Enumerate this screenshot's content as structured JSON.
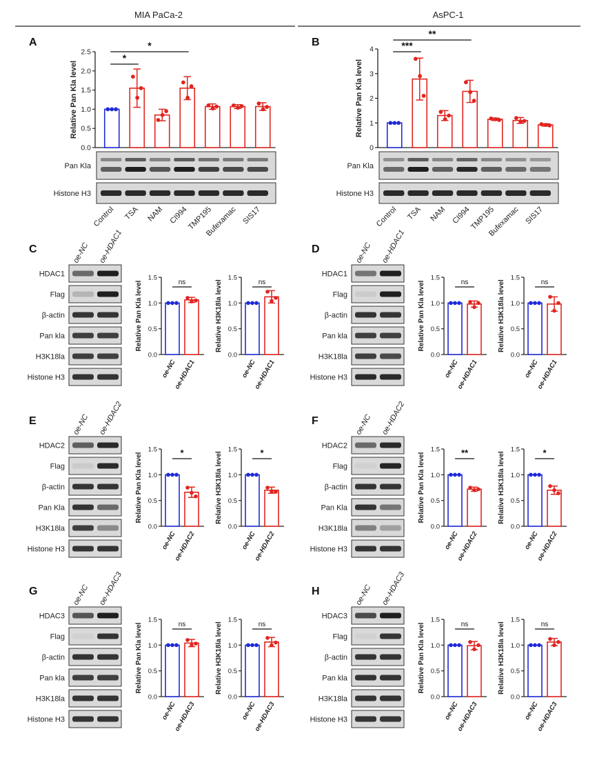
{
  "headers": {
    "left": "MIA PaCa-2",
    "right": "AsPC-1"
  },
  "colors": {
    "blue": "#1f2ad6",
    "red": "#e0251f",
    "axis": "#222222",
    "blot_bg": "#d9d9d9",
    "band": "#1a1a1a"
  },
  "panel_labels": [
    "A",
    "B",
    "C",
    "D",
    "E",
    "F",
    "G",
    "H"
  ],
  "chart_data": [
    {
      "id": "A",
      "type": "bar",
      "ylabel": "Relative Pan Kla level",
      "ylim": [
        0,
        2.5
      ],
      "yticks": [
        "0.0",
        "0.5",
        "1.0",
        "1.5",
        "2.0",
        "2.5"
      ],
      "categories": [
        "Control",
        "TSA",
        "NAM",
        "CI994",
        "TMP195",
        "Bufexamac",
        "SIS17"
      ],
      "values": [
        1.0,
        1.55,
        0.85,
        1.55,
        1.07,
        1.07,
        1.07
      ],
      "errors": [
        0.0,
        0.5,
        0.15,
        0.3,
        0.07,
        0.05,
        0.1
      ],
      "points": [
        [
          1,
          1,
          1
        ],
        [
          1.85,
          1.3,
          1.55
        ],
        [
          0.72,
          0.85,
          0.95
        ],
        [
          1.7,
          1.3,
          1.6
        ],
        [
          1.1,
          1.02,
          1.07
        ],
        [
          1.1,
          1.04,
          1.08
        ],
        [
          1.15,
          1.0,
          1.06
        ]
      ],
      "sig": [
        {
          "from": 0,
          "to": 1,
          "label": "*"
        },
        {
          "from": 0,
          "to": 3,
          "label": "*"
        }
      ],
      "blots": [
        {
          "label": "Pan Kla",
          "rows": 2,
          "intensity": [
            0.65,
            0.95,
            0.7,
            0.95,
            0.8,
            0.75,
            0.75
          ]
        },
        {
          "label": "Histone H3",
          "rows": 1,
          "intensity": [
            0.9,
            0.9,
            0.9,
            0.9,
            0.9,
            0.9,
            0.9
          ]
        }
      ]
    },
    {
      "id": "B",
      "type": "bar",
      "ylabel": "Relative Pan Kla level",
      "ylim": [
        0,
        4
      ],
      "yticks": [
        "0",
        "1",
        "2",
        "3",
        "4"
      ],
      "categories": [
        "Control",
        "TSA",
        "NAM",
        "CI994",
        "TMP195",
        "Bufexamac",
        "SIS17"
      ],
      "values": [
        1.0,
        2.78,
        1.3,
        2.28,
        1.15,
        1.1,
        0.92
      ],
      "errors": [
        0.0,
        0.85,
        0.2,
        0.45,
        0.05,
        0.12,
        0.05
      ],
      "points": [
        [
          1,
          1,
          1
        ],
        [
          3.6,
          2.9,
          2.1
        ],
        [
          1.45,
          1.15,
          1.3
        ],
        [
          2.65,
          2.25,
          1.9
        ],
        [
          1.18,
          1.15,
          1.12
        ],
        [
          1.2,
          1.05,
          1.08
        ],
        [
          0.95,
          0.92,
          0.9
        ]
      ],
      "sig": [
        {
          "from": 0,
          "to": 1,
          "label": "***"
        },
        {
          "from": 0,
          "to": 3,
          "label": "**"
        }
      ],
      "blots": [
        {
          "label": "Pan Kla",
          "rows": 2,
          "intensity": [
            0.6,
            0.95,
            0.65,
            0.9,
            0.65,
            0.6,
            0.55
          ]
        },
        {
          "label": "Histone H3",
          "rows": 1,
          "intensity": [
            0.9,
            0.9,
            0.9,
            0.9,
            0.9,
            0.9,
            0.9
          ]
        }
      ]
    },
    {
      "id": "C",
      "type": "bar",
      "lanes": [
        "oe-NC",
        "oe-HDAC1"
      ],
      "blots": [
        {
          "label": "HDAC1",
          "intensity": [
            0.6,
            0.95
          ]
        },
        {
          "label": "Flag",
          "intensity": [
            0.25,
            0.95
          ]
        },
        {
          "label": "β-actin",
          "intensity": [
            0.85,
            0.85
          ]
        },
        {
          "label": "Pan kla",
          "intensity": [
            0.8,
            0.8
          ]
        },
        {
          "label": "H3K18la",
          "intensity": [
            0.8,
            0.8
          ]
        },
        {
          "label": "Histone H3",
          "intensity": [
            0.85,
            0.85
          ]
        }
      ],
      "plots": [
        {
          "ylabel": "Relative Pan Kla level",
          "categories": [
            "oe-NC",
            "oe-HDAC1"
          ],
          "values": [
            1.0,
            1.06
          ],
          "errors": [
            0,
            0.05
          ],
          "points": [
            [
              1,
              1,
              1
            ],
            [
              1.1,
              1.03,
              1.05
            ]
          ],
          "sig": "ns"
        },
        {
          "ylabel": "Relative H3K18la level",
          "categories": [
            "oe-NC",
            "oe-HDAC1"
          ],
          "values": [
            1.0,
            1.12
          ],
          "errors": [
            0,
            0.12
          ],
          "points": [
            [
              1,
              1,
              1
            ],
            [
              1.22,
              1.04,
              1.1
            ]
          ],
          "sig": "ns"
        }
      ],
      "ylim": [
        0,
        1.5
      ],
      "yticks": [
        "0.0",
        "0.5",
        "1.0",
        "1.5"
      ]
    },
    {
      "id": "D",
      "type": "bar",
      "lanes": [
        "oe-NC",
        "oe-HDAC1"
      ],
      "blots": [
        {
          "label": "HDAC1",
          "intensity": [
            0.55,
            0.95
          ]
        },
        {
          "label": "Flag",
          "intensity": [
            0.15,
            0.95
          ]
        },
        {
          "label": "β-actin",
          "intensity": [
            0.85,
            0.85
          ]
        },
        {
          "label": "Pan kla",
          "intensity": [
            0.8,
            0.8
          ]
        },
        {
          "label": "H3K18la",
          "intensity": [
            0.8,
            0.75
          ]
        },
        {
          "label": "Histone H3",
          "intensity": [
            0.9,
            0.9
          ]
        }
      ],
      "plots": [
        {
          "ylabel": "Relative Pan Kla level",
          "categories": [
            "oe-NC",
            "oe-HDAC1"
          ],
          "values": [
            1.0,
            0.98
          ],
          "errors": [
            0,
            0.06
          ],
          "points": [
            [
              1,
              1,
              1
            ],
            [
              1.02,
              0.92,
              1.0
            ]
          ],
          "sig": "ns"
        },
        {
          "ylabel": "Relative H3K18la level",
          "categories": [
            "oe-NC",
            "oe-HDAC1"
          ],
          "values": [
            1.0,
            0.98
          ],
          "errors": [
            0,
            0.14
          ],
          "points": [
            [
              1,
              1,
              1
            ],
            [
              1.12,
              0.85,
              1.0
            ]
          ],
          "sig": "ns"
        }
      ],
      "ylim": [
        0,
        1.5
      ],
      "yticks": [
        "0.0",
        "0.5",
        "1.0",
        "1.5"
      ]
    },
    {
      "id": "E",
      "type": "bar",
      "lanes": [
        "oe-NC",
        "oe-HDAC2"
      ],
      "blots": [
        {
          "label": "HDAC2",
          "intensity": [
            0.65,
            0.9
          ]
        },
        {
          "label": "Flag",
          "intensity": [
            0.15,
            0.9
          ]
        },
        {
          "label": "β-actin",
          "intensity": [
            0.85,
            0.85
          ]
        },
        {
          "label": "Pan Kla",
          "intensity": [
            0.85,
            0.6
          ]
        },
        {
          "label": "H3K18la",
          "intensity": [
            0.8,
            0.45
          ]
        },
        {
          "label": "Histone H3",
          "intensity": [
            0.85,
            0.85
          ]
        }
      ],
      "plots": [
        {
          "ylabel": "Relative Pan Kla level",
          "categories": [
            "oe-NC",
            "oe-HDAC2"
          ],
          "values": [
            1.0,
            0.66
          ],
          "errors": [
            0,
            0.1
          ],
          "points": [
            [
              1,
              1,
              1
            ],
            [
              0.75,
              0.65,
              0.58
            ]
          ],
          "sig": "*"
        },
        {
          "ylabel": "Relative H3K18la level",
          "categories": [
            "oe-NC",
            "oe-HDAC2"
          ],
          "values": [
            1.0,
            0.7
          ],
          "errors": [
            0,
            0.06
          ],
          "points": [
            [
              1,
              1,
              1
            ],
            [
              0.75,
              0.68,
              0.67
            ]
          ],
          "sig": "*"
        }
      ],
      "ylim": [
        0,
        1.5
      ],
      "yticks": [
        "0.0",
        "0.5",
        "1.0",
        "1.5"
      ]
    },
    {
      "id": "F",
      "type": "bar",
      "lanes": [
        "oe-NC",
        "oe-HDAC2"
      ],
      "blots": [
        {
          "label": "HDAC2",
          "intensity": [
            0.6,
            0.9
          ]
        },
        {
          "label": "Flag",
          "intensity": [
            0.12,
            0.92
          ]
        },
        {
          "label": "β-actin",
          "intensity": [
            0.85,
            0.85
          ]
        },
        {
          "label": "Pan Kla",
          "intensity": [
            0.85,
            0.55
          ]
        },
        {
          "label": "H3K18la",
          "intensity": [
            0.5,
            0.35
          ]
        },
        {
          "label": "Histone H3",
          "intensity": [
            0.85,
            0.85
          ]
        }
      ],
      "plots": [
        {
          "ylabel": "Relative Pan Kla level",
          "categories": [
            "oe-NC",
            "oe-HDAC2"
          ],
          "values": [
            1.0,
            0.72
          ],
          "errors": [
            0,
            0.04
          ],
          "points": [
            [
              1,
              1,
              1
            ],
            [
              0.75,
              0.7,
              0.72
            ]
          ],
          "sig": "**"
        },
        {
          "ylabel": "Relative H3K18la level",
          "categories": [
            "oe-NC",
            "oe-HDAC2"
          ],
          "values": [
            1.0,
            0.7
          ],
          "errors": [
            0,
            0.08
          ],
          "points": [
            [
              1,
              1,
              1
            ],
            [
              0.78,
              0.7,
              0.64
            ]
          ],
          "sig": "*"
        }
      ],
      "ylim": [
        0,
        1.5
      ],
      "yticks": [
        "0.0",
        "0.5",
        "1.0",
        "1.5"
      ]
    },
    {
      "id": "G",
      "type": "bar",
      "lanes": [
        "oe-NC",
        "oe-HDAC3"
      ],
      "blots": [
        {
          "label": "HDAC3",
          "intensity": [
            0.7,
            0.95
          ]
        },
        {
          "label": "Flag",
          "intensity": [
            0.12,
            0.85
          ]
        },
        {
          "label": "β-actin",
          "intensity": [
            0.85,
            0.85
          ]
        },
        {
          "label": "Pan kla",
          "intensity": [
            0.8,
            0.8
          ]
        },
        {
          "label": "H3K18la",
          "intensity": [
            0.85,
            0.85
          ]
        },
        {
          "label": "Histone H3",
          "intensity": [
            0.85,
            0.85
          ]
        }
      ],
      "plots": [
        {
          "ylabel": "Relative Pan Kla level",
          "categories": [
            "oe-NC",
            "oe-HDAC3"
          ],
          "values": [
            1.0,
            1.04
          ],
          "errors": [
            0,
            0.07
          ],
          "points": [
            [
              1,
              1,
              1
            ],
            [
              1.1,
              1.0,
              1.03
            ]
          ],
          "sig": "ns"
        },
        {
          "ylabel": "Relative H3K18la level",
          "categories": [
            "oe-NC",
            "oe-HDAC3"
          ],
          "values": [
            1.0,
            1.06
          ],
          "errors": [
            0,
            0.09
          ],
          "points": [
            [
              1,
              1,
              1
            ],
            [
              1.14,
              1.0,
              1.05
            ]
          ],
          "sig": "ns"
        }
      ],
      "ylim": [
        0,
        1.5
      ],
      "yticks": [
        "0.0",
        "0.5",
        "1.0",
        "1.5"
      ]
    },
    {
      "id": "H",
      "type": "bar",
      "lanes": [
        "oe-NC",
        "oe-HDAC3"
      ],
      "blots": [
        {
          "label": "HDAC3",
          "intensity": [
            0.75,
            0.95
          ]
        },
        {
          "label": "Flag",
          "intensity": [
            0.12,
            0.85
          ]
        },
        {
          "label": "β-actin",
          "intensity": [
            0.85,
            0.85
          ]
        },
        {
          "label": "Pan kla",
          "intensity": [
            0.85,
            0.85
          ]
        },
        {
          "label": "H3K18la",
          "intensity": [
            0.85,
            0.85
          ]
        },
        {
          "label": "Histone H3",
          "intensity": [
            0.85,
            0.85
          ]
        }
      ],
      "plots": [
        {
          "ylabel": "Relative Pan Kla level",
          "categories": [
            "oe-NC",
            "oe-HDAC3"
          ],
          "values": [
            1.0,
            0.99
          ],
          "errors": [
            0,
            0.08
          ],
          "points": [
            [
              1,
              1,
              1
            ],
            [
              1.06,
              0.92,
              1.0
            ]
          ],
          "sig": "ns"
        },
        {
          "ylabel": "Relative H3K18la level",
          "categories": [
            "oe-NC",
            "oe-HDAC3"
          ],
          "values": [
            1.0,
            1.06
          ],
          "errors": [
            0,
            0.07
          ],
          "points": [
            [
              1,
              1,
              1
            ],
            [
              1.12,
              1.0,
              1.06
            ]
          ],
          "sig": "ns"
        }
      ],
      "ylim": [
        0,
        1.5
      ],
      "yticks": [
        "0.0",
        "0.5",
        "1.0",
        "1.5"
      ]
    }
  ]
}
